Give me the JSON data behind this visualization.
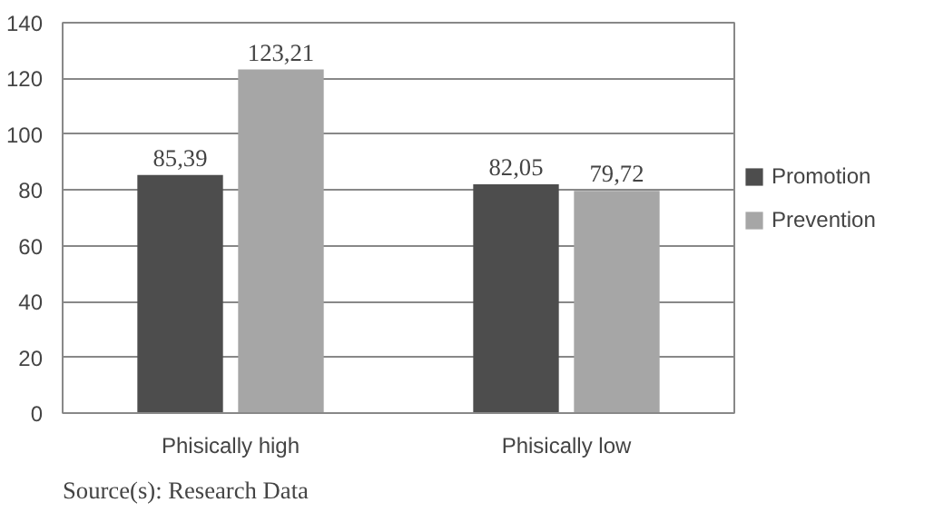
{
  "chart_data": {
    "type": "bar",
    "categories": [
      "Phisically high",
      "Phisically low"
    ],
    "series": [
      {
        "name": "Promotion",
        "color": "#4d4d4d",
        "values": [
          85.39,
          82.05
        ],
        "value_labels": [
          "85,39",
          "82,05"
        ]
      },
      {
        "name": "Prevention",
        "color": "#a6a6a6",
        "values": [
          123.21,
          79.72
        ],
        "value_labels": [
          "123,21",
          "79,72"
        ]
      }
    ],
    "ylim": [
      0,
      140
    ],
    "yticks": [
      0,
      20,
      40,
      60,
      80,
      100,
      120,
      140
    ],
    "grid": "y",
    "legend": "right",
    "annotations": [
      "Source(s): Research Data"
    ]
  }
}
